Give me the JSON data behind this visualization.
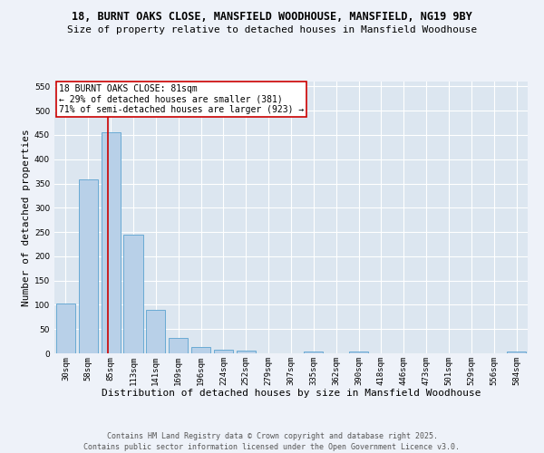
{
  "title_line1": "18, BURNT OAKS CLOSE, MANSFIELD WOODHOUSE, MANSFIELD, NG19 9BY",
  "title_line2": "Size of property relative to detached houses in Mansfield Woodhouse",
  "xlabel": "Distribution of detached houses by size in Mansfield Woodhouse",
  "ylabel": "Number of detached properties",
  "bar_labels": [
    "30sqm",
    "58sqm",
    "85sqm",
    "113sqm",
    "141sqm",
    "169sqm",
    "196sqm",
    "224sqm",
    "252sqm",
    "279sqm",
    "307sqm",
    "335sqm",
    "362sqm",
    "390sqm",
    "418sqm",
    "446sqm",
    "473sqm",
    "501sqm",
    "529sqm",
    "556sqm",
    "584sqm"
  ],
  "bar_values": [
    103,
    358,
    455,
    245,
    90,
    32,
    14,
    8,
    5,
    0,
    0,
    3,
    0,
    4,
    0,
    0,
    0,
    0,
    0,
    0,
    4
  ],
  "bar_color": "#b8d0e8",
  "bar_edge_color": "#6aaad4",
  "vline_color": "#cc0000",
  "vline_x": 1.88,
  "annotation_text": "18 BURNT OAKS CLOSE: 81sqm\n← 29% of detached houses are smaller (381)\n71% of semi-detached houses are larger (923) →",
  "annotation_box_color": "#ffffff",
  "annotation_box_edge_color": "#cc0000",
  "ylim": [
    0,
    560
  ],
  "yticks": [
    0,
    50,
    100,
    150,
    200,
    250,
    300,
    350,
    400,
    450,
    500,
    550
  ],
  "footer_text": "Contains HM Land Registry data © Crown copyright and database right 2025.\nContains public sector information licensed under the Open Government Licence v3.0.",
  "bg_color": "#eef2f9",
  "plot_bg_color": "#dce6f0",
  "grid_color": "#ffffff",
  "title_fontsize": 8.5,
  "subtitle_fontsize": 8,
  "axis_label_fontsize": 8,
  "tick_fontsize": 6.5,
  "footer_fontsize": 6,
  "annot_fontsize": 7
}
